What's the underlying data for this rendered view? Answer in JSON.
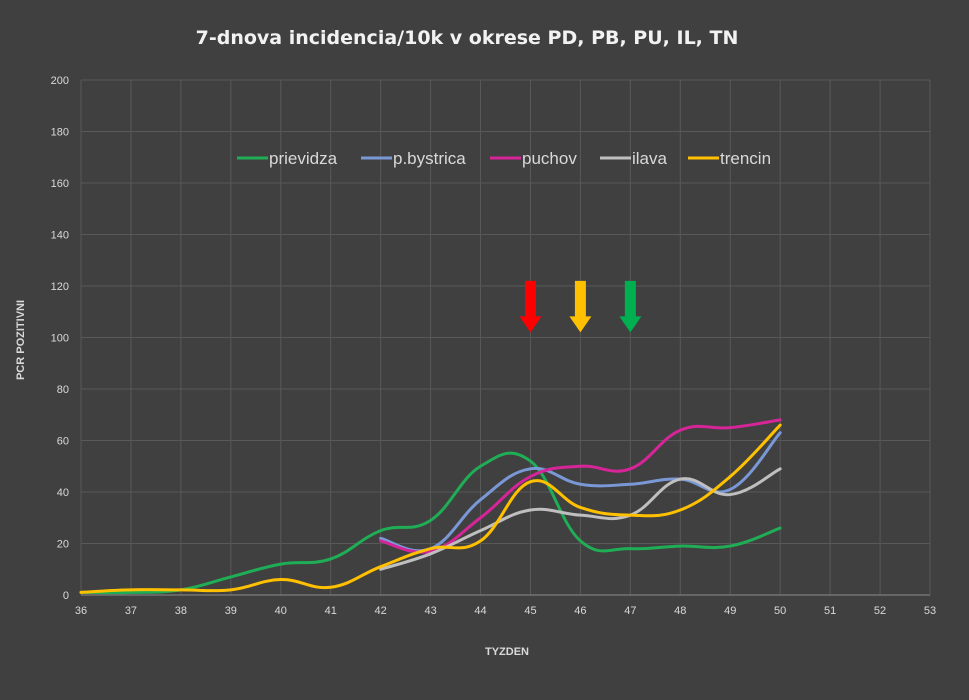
{
  "chart_data": {
    "type": "line",
    "title": "7-dnova incidencia/10k v okrese PD, PB, PU, IL, TN",
    "xlabel": "TYZDEN",
    "ylabel": "PCR POZITIVNI",
    "xlim": [
      36,
      53
    ],
    "ylim": [
      0,
      200
    ],
    "x_ticks": [
      "36",
      "37",
      "38",
      "39",
      "40",
      "41",
      "42",
      "43",
      "44",
      "45",
      "46",
      "47",
      "48",
      "49",
      "50",
      "51",
      "52",
      "53"
    ],
    "y_ticks": [
      "0",
      "20",
      "40",
      "60",
      "80",
      "100",
      "120",
      "140",
      "160",
      "180",
      "200"
    ],
    "grid": true,
    "legend_position": "top",
    "series": [
      {
        "name": "prievidza",
        "color": "#1fad55",
        "points": [
          [
            36,
            1
          ],
          [
            37,
            1
          ],
          [
            38,
            2
          ],
          [
            39,
            7
          ],
          [
            40,
            12
          ],
          [
            41,
            14
          ],
          [
            42,
            25
          ],
          [
            43,
            29
          ],
          [
            44,
            50
          ],
          [
            45,
            52
          ],
          [
            46,
            21
          ],
          [
            47,
            18
          ],
          [
            48,
            19
          ],
          [
            49,
            19
          ],
          [
            50,
            26
          ]
        ]
      },
      {
        "name": "p.bystrica",
        "color": "#7a97d6",
        "points": [
          [
            42,
            22
          ],
          [
            43,
            18
          ],
          [
            44,
            37
          ],
          [
            45,
            49
          ],
          [
            46,
            43
          ],
          [
            47,
            43
          ],
          [
            48,
            45
          ],
          [
            49,
            41
          ],
          [
            50,
            63
          ]
        ]
      },
      {
        "name": "puchov",
        "color": "#d62598",
        "points": [
          [
            42,
            21
          ],
          [
            43,
            17
          ],
          [
            44,
            30
          ],
          [
            45,
            46
          ],
          [
            46,
            50
          ],
          [
            47,
            49
          ],
          [
            48,
            64
          ],
          [
            49,
            65
          ],
          [
            50,
            68
          ]
        ]
      },
      {
        "name": "ilava",
        "color": "#bfbfbf",
        "points": [
          [
            42,
            10
          ],
          [
            43,
            16
          ],
          [
            44,
            25
          ],
          [
            45,
            33
          ],
          [
            46,
            31
          ],
          [
            47,
            31
          ],
          [
            48,
            45
          ],
          [
            49,
            39
          ],
          [
            50,
            49
          ]
        ]
      },
      {
        "name": "trencin",
        "color": "#ffc000",
        "points": [
          [
            36,
            1
          ],
          [
            37,
            2
          ],
          [
            38,
            2
          ],
          [
            39,
            2
          ],
          [
            40,
            6
          ],
          [
            41,
            3
          ],
          [
            42,
            11
          ],
          [
            43,
            18
          ],
          [
            44,
            21
          ],
          [
            45,
            44
          ],
          [
            46,
            34
          ],
          [
            47,
            31
          ],
          [
            48,
            33
          ],
          [
            49,
            46
          ],
          [
            50,
            66
          ]
        ]
      }
    ],
    "annotations": [
      {
        "type": "arrow-down",
        "x": 45,
        "y_top": 122,
        "y_bottom": 102,
        "color": "#ff0000"
      },
      {
        "type": "arrow-down",
        "x": 46,
        "y_top": 122,
        "y_bottom": 102,
        "color": "#ffc000"
      },
      {
        "type": "arrow-down",
        "x": 47,
        "y_top": 122,
        "y_bottom": 102,
        "color": "#00b050"
      }
    ]
  }
}
